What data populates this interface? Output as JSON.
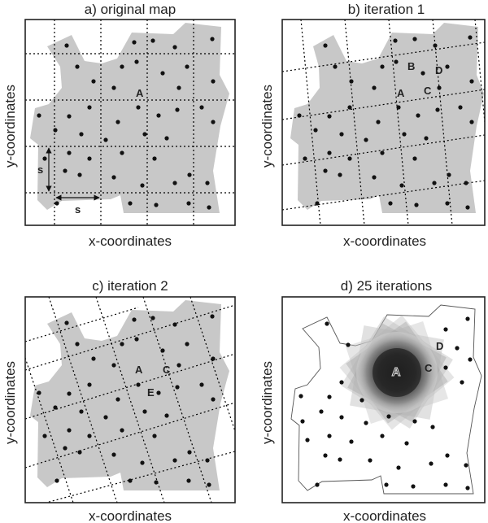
{
  "panels": [
    {
      "id": "a",
      "title": "a) original map",
      "xlabel": "x-coordinates",
      "ylabel": "y-coordinates",
      "point_labels": [
        "A"
      ],
      "scale_labels": [
        "s",
        "s"
      ]
    },
    {
      "id": "b",
      "title": "b) iteration 1",
      "xlabel": "x-coordinates",
      "ylabel": "y-coordinates",
      "point_labels": [
        "A",
        "B",
        "C",
        "D"
      ]
    },
    {
      "id": "c",
      "title": "c) iteration 2",
      "xlabel": "x-coordinates",
      "ylabel": "y-coordinates",
      "point_labels": [
        "A",
        "C",
        "E"
      ]
    },
    {
      "id": "d",
      "title": "d) 25 iterations",
      "xlabel": "x-coordinates",
      "ylabel": "y-coordinates",
      "point_labels": [
        "A",
        "C",
        "D"
      ]
    }
  ],
  "colors": {
    "region": "#c8c8c8",
    "dots": "#111111",
    "frame": "#222222"
  }
}
